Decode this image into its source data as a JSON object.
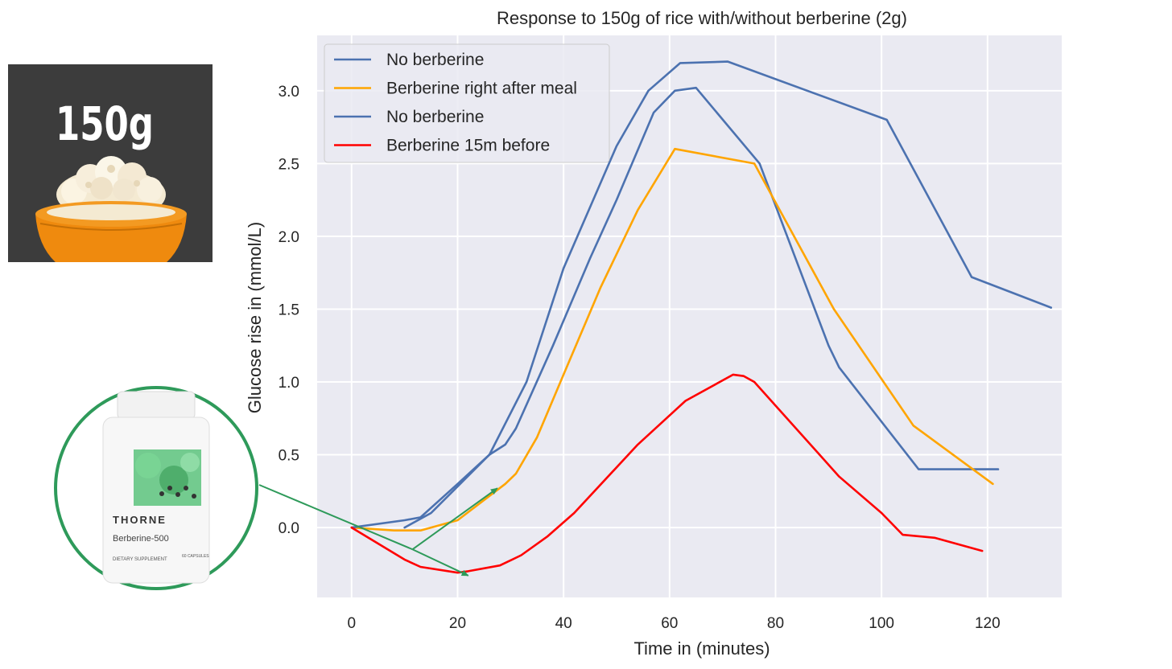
{
  "rice_card": {
    "label": "150g"
  },
  "bottle": {
    "brand": "THORNE",
    "product": "Berberine-500",
    "subtitle": "DIETARY SUPPLEMENT",
    "count": "60 CAPSULES"
  },
  "chart_data": {
    "type": "line",
    "title": "Response to 150g of rice with/without berberine (2g)",
    "xlabel": "Time in (minutes)",
    "ylabel": "Glucose rise in (mmol/L)",
    "xlim": [
      -6.5,
      134
    ],
    "ylim": [
      -0.48,
      3.38
    ],
    "xticks": [
      0,
      20,
      40,
      60,
      80,
      100,
      120
    ],
    "yticks": [
      0.0,
      0.5,
      1.0,
      1.5,
      2.0,
      2.5,
      3.0
    ],
    "xtick_labels": [
      "0",
      "20",
      "40",
      "60",
      "80",
      "100",
      "120"
    ],
    "ytick_labels": [
      "0.0",
      "0.5",
      "1.0",
      "1.5",
      "2.0",
      "2.5",
      "3.0"
    ],
    "grid": true,
    "legend_position": "top-left",
    "series": [
      {
        "name": "No berberine",
        "color": "#4c72b0",
        "x": [
          10,
          15,
          26,
          29,
          31,
          38,
          45,
          50,
          57,
          61,
          65,
          77,
          90,
          92,
          107,
          122
        ],
        "y": [
          0.0,
          0.1,
          0.5,
          0.57,
          0.68,
          1.25,
          1.85,
          2.25,
          2.85,
          3.0,
          3.02,
          2.5,
          1.25,
          1.1,
          0.4,
          0.4
        ]
      },
      {
        "name": "Berberine right after meal",
        "color": "#ffa500",
        "x": [
          0,
          8,
          13,
          20,
          29,
          31,
          35,
          40,
          47,
          54,
          61,
          76,
          91,
          106,
          121
        ],
        "y": [
          0.0,
          -0.02,
          -0.02,
          0.05,
          0.3,
          0.37,
          0.62,
          1.05,
          1.65,
          2.18,
          2.6,
          2.5,
          1.5,
          0.7,
          0.3
        ]
      },
      {
        "name": "No berberine",
        "color": "#4c72b0",
        "x": [
          0,
          10,
          13,
          20,
          26,
          33,
          40,
          50,
          56,
          62,
          71,
          101,
          117,
          132
        ],
        "y": [
          0.0,
          0.05,
          0.07,
          0.3,
          0.5,
          1.0,
          1.78,
          2.62,
          3.0,
          3.19,
          3.2,
          2.8,
          1.72,
          1.51
        ]
      },
      {
        "name": "Berberine 15m before",
        "color": "#ff0000",
        "x": [
          0,
          10,
          13,
          20,
          22,
          28,
          32,
          37,
          42,
          54,
          63,
          72,
          74,
          76,
          92,
          100,
          104,
          110,
          119
        ],
        "y": [
          0.0,
          -0.22,
          -0.27,
          -0.31,
          -0.3,
          -0.26,
          -0.19,
          -0.06,
          0.1,
          0.57,
          0.87,
          1.05,
          1.04,
          1.0,
          0.35,
          0.1,
          -0.05,
          -0.07,
          -0.16
        ]
      }
    ],
    "annotations": [
      {
        "type": "arrow",
        "from": [
          11.5,
          -0.15
        ],
        "to": [
          27.5,
          0.27
        ],
        "color": "#2e9a5a"
      },
      {
        "type": "arrow",
        "from": [
          11.5,
          -0.15
        ],
        "to": [
          22,
          -0.33
        ],
        "color": "#2e9a5a"
      }
    ]
  }
}
